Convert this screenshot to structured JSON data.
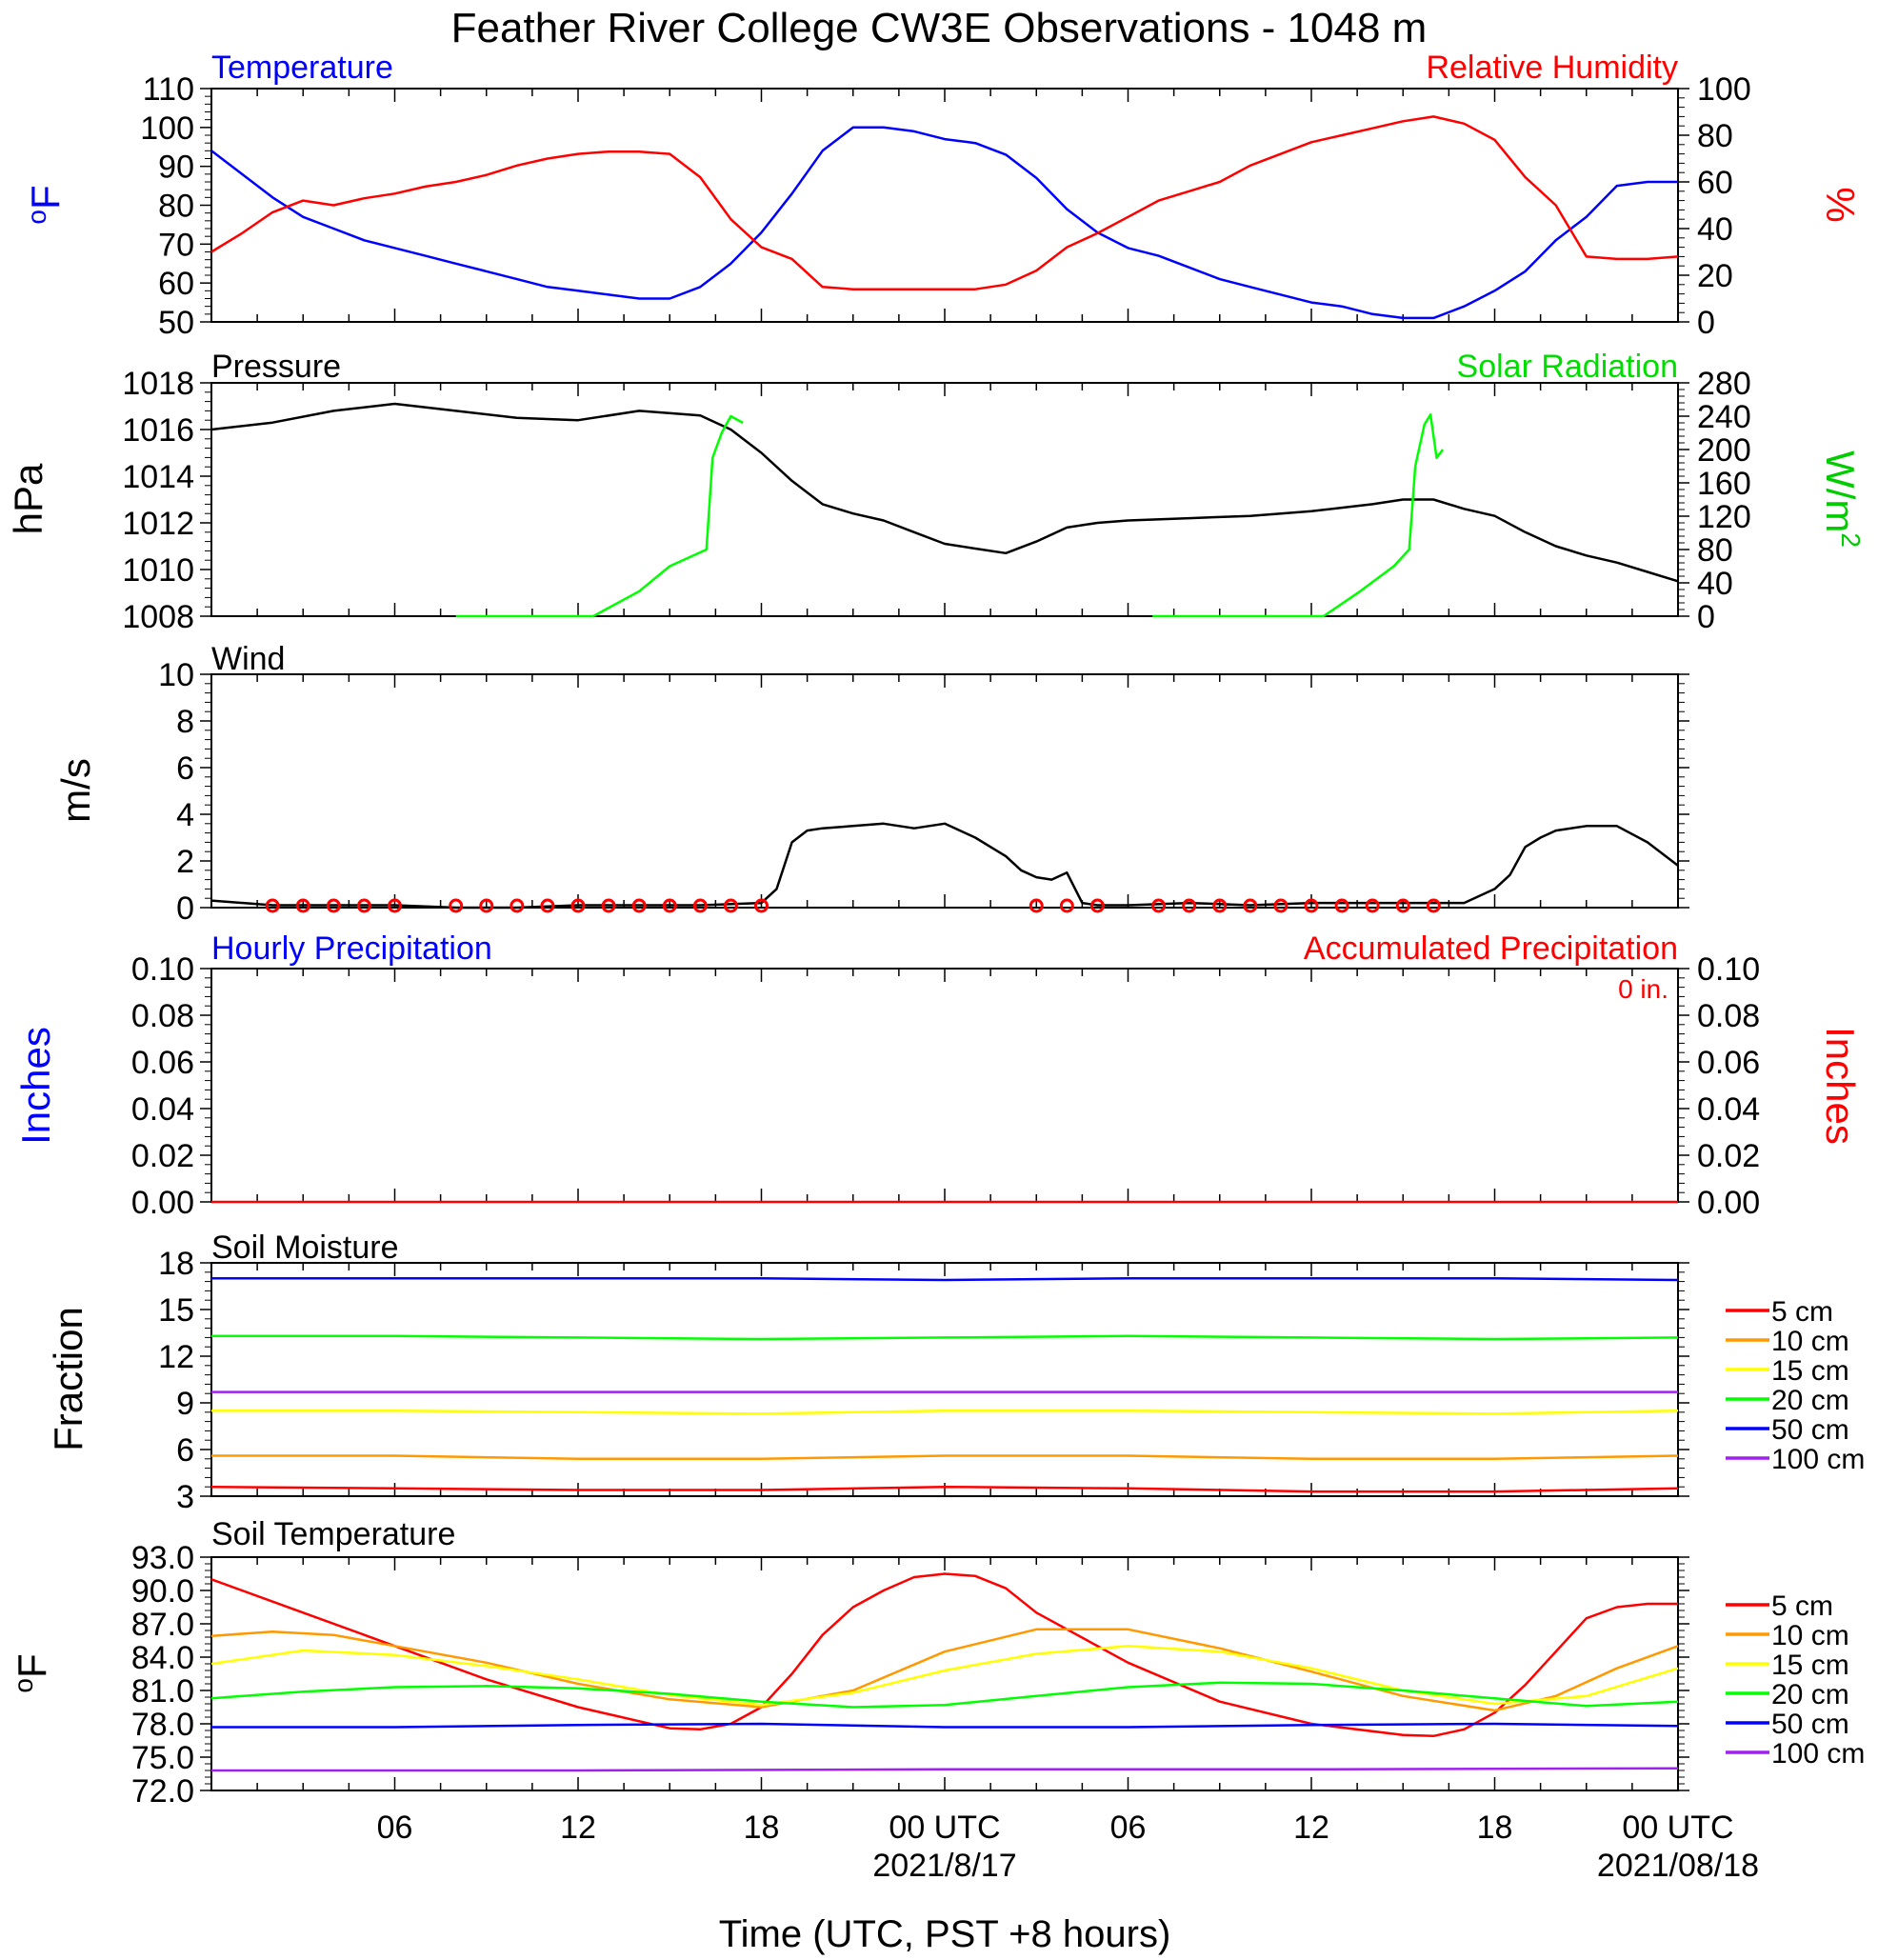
{
  "title": "Feather River College CW3E Observations - 1048 m",
  "xaxis": {
    "label": "Time (UTC, PST +8 hours)",
    "range_hours": [
      0,
      48
    ],
    "ticks": [
      {
        "h": 6,
        "label": "06",
        "sub": ""
      },
      {
        "h": 12,
        "label": "12",
        "sub": ""
      },
      {
        "h": 18,
        "label": "18",
        "sub": ""
      },
      {
        "h": 24,
        "label": "00 UTC",
        "sub": "2021/8/17"
      },
      {
        "h": 30,
        "label": "06",
        "sub": ""
      },
      {
        "h": 36,
        "label": "12",
        "sub": ""
      },
      {
        "h": 42,
        "label": "18",
        "sub": ""
      },
      {
        "h": 48,
        "label": "00 UTC",
        "sub": "2021/08/18"
      }
    ]
  },
  "chart_data": [
    {
      "type": "line",
      "left_title": "Temperature",
      "right_title": "Relative Humidity",
      "ylabel_left": "oF",
      "ylabel_right": "%",
      "ylim_left": [
        50,
        110
      ],
      "ylim_right": [
        0,
        100
      ],
      "yticks_left": [
        "50",
        "60",
        "70",
        "80",
        "90",
        "100",
        "110"
      ],
      "yticks_right": [
        "0",
        "20",
        "40",
        "60",
        "80",
        "100"
      ],
      "series": [
        {
          "name": "Temperature",
          "axis": "left",
          "color": "#0000ff",
          "x": [
            0,
            1,
            2,
            3,
            4,
            5,
            6,
            7,
            8,
            9,
            10,
            11,
            12,
            13,
            14,
            15,
            16,
            17,
            18,
            19,
            20,
            21,
            22,
            23,
            24,
            25,
            26,
            27,
            28,
            29,
            30,
            31,
            32,
            33,
            34,
            35,
            36,
            37,
            38,
            39,
            40,
            41,
            42,
            43,
            44,
            45,
            46,
            47,
            48
          ],
          "y": [
            94,
            88,
            82,
            77,
            74,
            71,
            69,
            67,
            65,
            63,
            61,
            59,
            58,
            57,
            56,
            56,
            59,
            65,
            73,
            83,
            94,
            100,
            100,
            99,
            97,
            96,
            93,
            87,
            79,
            73,
            69,
            67,
            64,
            61,
            59,
            57,
            55,
            54,
            52,
            51,
            51,
            54,
            58,
            63,
            71,
            77,
            85,
            86,
            86
          ]
        },
        {
          "name": "Relative Humidity",
          "axis": "right",
          "color": "#ff0000",
          "x": [
            0,
            1,
            2,
            3,
            4,
            5,
            6,
            7,
            8,
            9,
            10,
            11,
            12,
            13,
            14,
            15,
            16,
            17,
            18,
            19,
            20,
            21,
            22,
            23,
            24,
            25,
            26,
            27,
            28,
            29,
            30,
            31,
            32,
            33,
            34,
            35,
            36,
            37,
            38,
            39,
            40,
            41,
            42,
            43,
            44,
            45,
            46,
            47,
            48
          ],
          "y": [
            30,
            38,
            47,
            52,
            50,
            53,
            55,
            58,
            60,
            63,
            67,
            70,
            72,
            73,
            73,
            72,
            62,
            44,
            32,
            27,
            15,
            14,
            14,
            14,
            14,
            14,
            16,
            22,
            32,
            38,
            45,
            52,
            56,
            60,
            67,
            72,
            77,
            80,
            83,
            86,
            88,
            85,
            78,
            62,
            50,
            28,
            27,
            27,
            28
          ]
        }
      ]
    },
    {
      "type": "line",
      "left_title": "Pressure",
      "right_title": "Solar Radiation",
      "ylabel_left": "hPa",
      "ylabel_right": "W/m2",
      "ylim_left": [
        1008,
        1018
      ],
      "ylim_right": [
        0,
        280
      ],
      "yticks_left": [
        "1008",
        "1010",
        "1012",
        "1014",
        "1016",
        "1018"
      ],
      "yticks_right": [
        "0",
        "40",
        "80",
        "120",
        "160",
        "200",
        "240",
        "280"
      ],
      "series": [
        {
          "name": "Pressure",
          "axis": "left",
          "color": "#000000",
          "x": [
            0,
            2,
            4,
            6,
            8,
            10,
            12,
            14,
            16,
            17,
            18,
            19,
            20,
            21,
            22,
            23,
            24,
            25,
            26,
            27,
            28,
            29,
            30,
            32,
            34,
            36,
            38,
            39,
            40,
            41,
            42,
            43,
            44,
            45,
            46,
            47,
            48
          ],
          "y": [
            1016.0,
            1016.3,
            1016.8,
            1017.1,
            1016.8,
            1016.5,
            1016.4,
            1016.8,
            1016.6,
            1016.0,
            1015.0,
            1013.8,
            1012.8,
            1012.4,
            1012.1,
            1011.6,
            1011.1,
            1010.9,
            1010.7,
            1011.2,
            1011.8,
            1012.0,
            1012.1,
            1012.2,
            1012.3,
            1012.5,
            1012.8,
            1013.0,
            1013.0,
            1012.6,
            1012.3,
            1011.6,
            1011.0,
            1010.6,
            1010.3,
            1009.9,
            1009.5
          ]
        },
        {
          "name": "Solar Radiation",
          "axis": "right",
          "color": "#00ff00",
          "x": [
            8,
            12.5,
            14,
            15,
            16.2,
            16.4,
            16.7,
            17,
            17.4
          ],
          "y": [
            0,
            0,
            30,
            60,
            80,
            190,
            220,
            240,
            232
          ],
          "x2": [
            30.8,
            36.4,
            37.6,
            38.7,
            39.2,
            39.4,
            39.7,
            39.9,
            40.1,
            40.3
          ],
          "y2": [
            0,
            0,
            30,
            60,
            80,
            180,
            230,
            242,
            190,
            200
          ]
        }
      ]
    },
    {
      "type": "line",
      "left_title": "Wind",
      "ylabel_left": "m/s",
      "ylim_left": [
        0,
        10
      ],
      "yticks_left": [
        "0",
        "2",
        "4",
        "6",
        "8",
        "10"
      ],
      "series": [
        {
          "name": "Wind",
          "axis": "left",
          "color": "#000000",
          "x": [
            0,
            2,
            4,
            6,
            8,
            10,
            12,
            14,
            16,
            18,
            18.5,
            19,
            19.5,
            20,
            21,
            22,
            23,
            24,
            25,
            26,
            26.5,
            27,
            27.5,
            28,
            28.5,
            29,
            30,
            32,
            34,
            36,
            38,
            40,
            41,
            42,
            42.5,
            43,
            43.5,
            44,
            45,
            46,
            47,
            48
          ],
          "y": [
            0.3,
            0.1,
            0.1,
            0.1,
            0,
            0,
            0.1,
            0.1,
            0.1,
            0.2,
            0.8,
            2.8,
            3.3,
            3.4,
            3.5,
            3.6,
            3.4,
            3.6,
            3.0,
            2.2,
            1.6,
            1.3,
            1.2,
            1.5,
            0.2,
            0.1,
            0.1,
            0.2,
            0.1,
            0.2,
            0.2,
            0.2,
            0.2,
            0.8,
            1.4,
            2.6,
            3.0,
            3.3,
            3.5,
            3.5,
            2.8,
            1.8
          ]
        }
      ]
    },
    {
      "type": "line",
      "left_title": "Hourly Precipitation",
      "right_title": "Accumulated Precipitation",
      "annotation": "0 in.",
      "ylabel_left": "Inches",
      "ylabel_right": "Inches",
      "ylim_left": [
        0,
        0.1
      ],
      "ylim_right": [
        0,
        0.1
      ],
      "yticks_left": [
        "0.00",
        "0.02",
        "0.04",
        "0.06",
        "0.08",
        "0.10"
      ],
      "yticks_right": [
        "0.00",
        "0.02",
        "0.04",
        "0.06",
        "0.08",
        "0.10"
      ],
      "series": [
        {
          "name": "Accumulated Precipitation",
          "axis": "right",
          "color": "#ff0000",
          "x": [
            0,
            48
          ],
          "y": [
            0,
            0
          ]
        }
      ]
    },
    {
      "type": "line",
      "left_title": "Soil Moisture",
      "ylabel_left": "Fraction",
      "ylim_left": [
        3,
        18
      ],
      "yticks_left": [
        "3",
        "6",
        "9",
        "12",
        "15",
        "18"
      ],
      "series": [
        {
          "name": "5 cm",
          "color": "#ff0000",
          "x": [
            0,
            6,
            12,
            18,
            24,
            30,
            36,
            42,
            48
          ],
          "y": [
            3.6,
            3.5,
            3.4,
            3.4,
            3.6,
            3.5,
            3.3,
            3.3,
            3.5
          ]
        },
        {
          "name": "10 cm",
          "color": "#ff9900",
          "x": [
            0,
            6,
            12,
            18,
            24,
            30,
            36,
            42,
            48
          ],
          "y": [
            5.6,
            5.6,
            5.4,
            5.4,
            5.6,
            5.6,
            5.4,
            5.4,
            5.6
          ]
        },
        {
          "name": "15 cm",
          "color": "#ffff00",
          "x": [
            0,
            6,
            12,
            18,
            24,
            30,
            36,
            42,
            48
          ],
          "y": [
            8.5,
            8.5,
            8.4,
            8.3,
            8.5,
            8.5,
            8.4,
            8.3,
            8.5
          ]
        },
        {
          "name": "20 cm",
          "color": "#00ff00",
          "x": [
            0,
            6,
            12,
            18,
            24,
            30,
            36,
            42,
            48
          ],
          "y": [
            13.3,
            13.3,
            13.2,
            13.1,
            13.2,
            13.3,
            13.2,
            13.1,
            13.2
          ]
        },
        {
          "name": "50 cm",
          "color": "#0000ff",
          "x": [
            0,
            6,
            12,
            18,
            24,
            30,
            36,
            42,
            48
          ],
          "y": [
            17.0,
            17.0,
            17.0,
            17.0,
            16.9,
            17.0,
            17.0,
            17.0,
            16.9
          ]
        },
        {
          "name": "100 cm",
          "color": "#a020f0",
          "x": [
            0,
            12,
            24,
            36,
            48
          ],
          "y": [
            9.7,
            9.7,
            9.7,
            9.7,
            9.7
          ]
        }
      ]
    },
    {
      "type": "line",
      "left_title": "Soil Temperature",
      "ylabel_left": "oF",
      "ylim_left": [
        72,
        93
      ],
      "yticks_left": [
        "72.0",
        "75.0",
        "78.0",
        "81.0",
        "84.0",
        "87.0",
        "90.0",
        "93.0"
      ],
      "series": [
        {
          "name": "5 cm",
          "color": "#ff0000",
          "x": [
            0,
            3,
            6,
            9,
            12,
            15,
            16,
            17,
            18,
            19,
            20,
            21,
            22,
            23,
            24,
            25,
            26,
            27,
            30,
            33,
            36,
            39,
            40,
            41,
            42,
            43,
            44,
            45,
            46,
            47,
            48
          ],
          "y": [
            91,
            88,
            85,
            82,
            79.5,
            77.6,
            77.5,
            78.0,
            79.5,
            82.5,
            86,
            88.5,
            90,
            91.2,
            91.5,
            91.3,
            90.2,
            88,
            83.5,
            80,
            78,
            77.0,
            76.9,
            77.5,
            79,
            81.5,
            84.5,
            87.5,
            88.5,
            88.8,
            88.8
          ]
        },
        {
          "name": "10 cm",
          "color": "#ff9900",
          "x": [
            0,
            2,
            4,
            6,
            9,
            12,
            15,
            18,
            21,
            24,
            27,
            30,
            33,
            36,
            39,
            42,
            44,
            46,
            48
          ],
          "y": [
            85.9,
            86.3,
            86.0,
            85.0,
            83.5,
            81.6,
            80.2,
            79.5,
            81.0,
            84.5,
            86.5,
            86.5,
            84.8,
            82.7,
            80.5,
            79.2,
            80.5,
            83.0,
            85.0
          ]
        },
        {
          "name": "15 cm",
          "color": "#ffff00",
          "x": [
            0,
            3,
            6,
            9,
            12,
            15,
            18,
            21,
            24,
            27,
            30,
            33,
            36,
            39,
            42,
            45,
            48
          ],
          "y": [
            83.4,
            84.6,
            84.2,
            83.2,
            82.0,
            80.6,
            79.7,
            80.8,
            82.8,
            84.3,
            85.0,
            84.5,
            83.0,
            81.0,
            79.8,
            80.5,
            83.0
          ]
        },
        {
          "name": "20 cm",
          "color": "#00ff00",
          "x": [
            0,
            3,
            6,
            9,
            12,
            15,
            18,
            21,
            24,
            27,
            30,
            33,
            36,
            39,
            42,
            45,
            48
          ],
          "y": [
            80.3,
            80.9,
            81.3,
            81.4,
            81.2,
            80.7,
            80.0,
            79.5,
            79.7,
            80.5,
            81.3,
            81.7,
            81.6,
            81.0,
            80.3,
            79.6,
            80.0
          ]
        },
        {
          "name": "50 cm",
          "color": "#0000ff",
          "x": [
            0,
            6,
            12,
            18,
            24,
            30,
            36,
            42,
            48
          ],
          "y": [
            77.7,
            77.7,
            77.9,
            78.0,
            77.7,
            77.7,
            77.9,
            78.0,
            77.8
          ]
        },
        {
          "name": "100 cm",
          "color": "#a020f0",
          "x": [
            0,
            12,
            24,
            36,
            48
          ],
          "y": [
            73.8,
            73.8,
            73.9,
            73.9,
            74.0
          ]
        }
      ]
    }
  ],
  "wind_barbs_calm_hours": [
    2,
    3,
    4,
    5,
    6,
    8,
    9,
    10,
    11,
    12,
    13,
    14,
    15,
    16,
    17,
    18,
    27,
    28,
    29,
    31,
    32,
    33,
    34,
    35,
    36,
    37,
    38,
    39,
    40
  ],
  "legend_entries": [
    "5 cm",
    "10 cm",
    "15 cm",
    "20 cm",
    "50 cm",
    "100 cm"
  ]
}
